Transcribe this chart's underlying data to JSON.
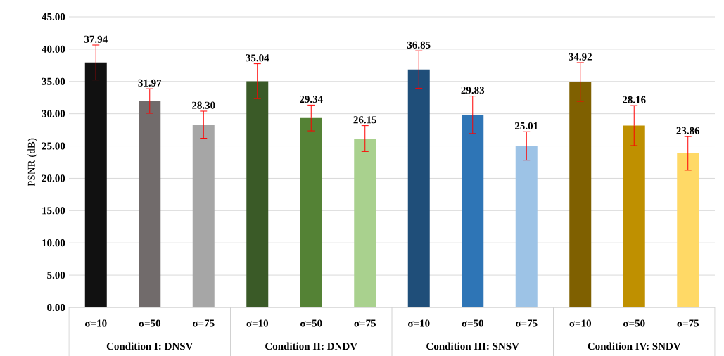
{
  "chart_data": {
    "type": "bar",
    "ylabel": "PSNR (dB)",
    "categories": [
      "σ=10",
      "σ=50",
      "σ=75",
      "σ=10",
      "σ=50",
      "σ=75",
      "σ=10",
      "σ=50",
      "σ=75",
      "σ=10",
      "σ=50",
      "σ=75"
    ],
    "values": [
      37.94,
      31.97,
      28.3,
      35.04,
      29.34,
      26.15,
      36.85,
      29.83,
      25.01,
      34.92,
      28.16,
      23.86
    ],
    "value_labels": [
      "37.94",
      "31.97",
      "28.30",
      "35.04",
      "29.34",
      "26.15",
      "36.85",
      "29.83",
      "25.01",
      "34.92",
      "28.16",
      "23.86"
    ],
    "errors": [
      2.7,
      1.9,
      2.1,
      2.7,
      2.0,
      2.0,
      2.9,
      2.9,
      2.2,
      3.0,
      3.1,
      2.6
    ],
    "colors": [
      "#111111",
      "#716b6b",
      "#a6a6a6",
      "#3a5a27",
      "#548235",
      "#a9d18e",
      "#1f4e79",
      "#2e75b6",
      "#9dc3e6",
      "#7f6000",
      "#bf9000",
      "#ffd966"
    ],
    "ylim": [
      0,
      45
    ],
    "yticks": [
      {
        "value": 0,
        "label": "0.00"
      },
      {
        "value": 5,
        "label": "5.00"
      },
      {
        "value": 10,
        "label": "10.00"
      },
      {
        "value": 15,
        "label": "15.00"
      },
      {
        "value": 20,
        "label": "20.00"
      },
      {
        "value": 25,
        "label": "25.00"
      },
      {
        "value": 30,
        "label": "30.00"
      },
      {
        "value": 35,
        "label": "35.00"
      },
      {
        "value": 40,
        "label": "40.00"
      },
      {
        "value": 45,
        "label": "45.00"
      }
    ],
    "grid": "y",
    "annotations": [
      "Condition I: DNSV",
      "Condition II: DNDV",
      "Condition III: SNSV",
      "Condition IV: SNDV"
    ]
  }
}
